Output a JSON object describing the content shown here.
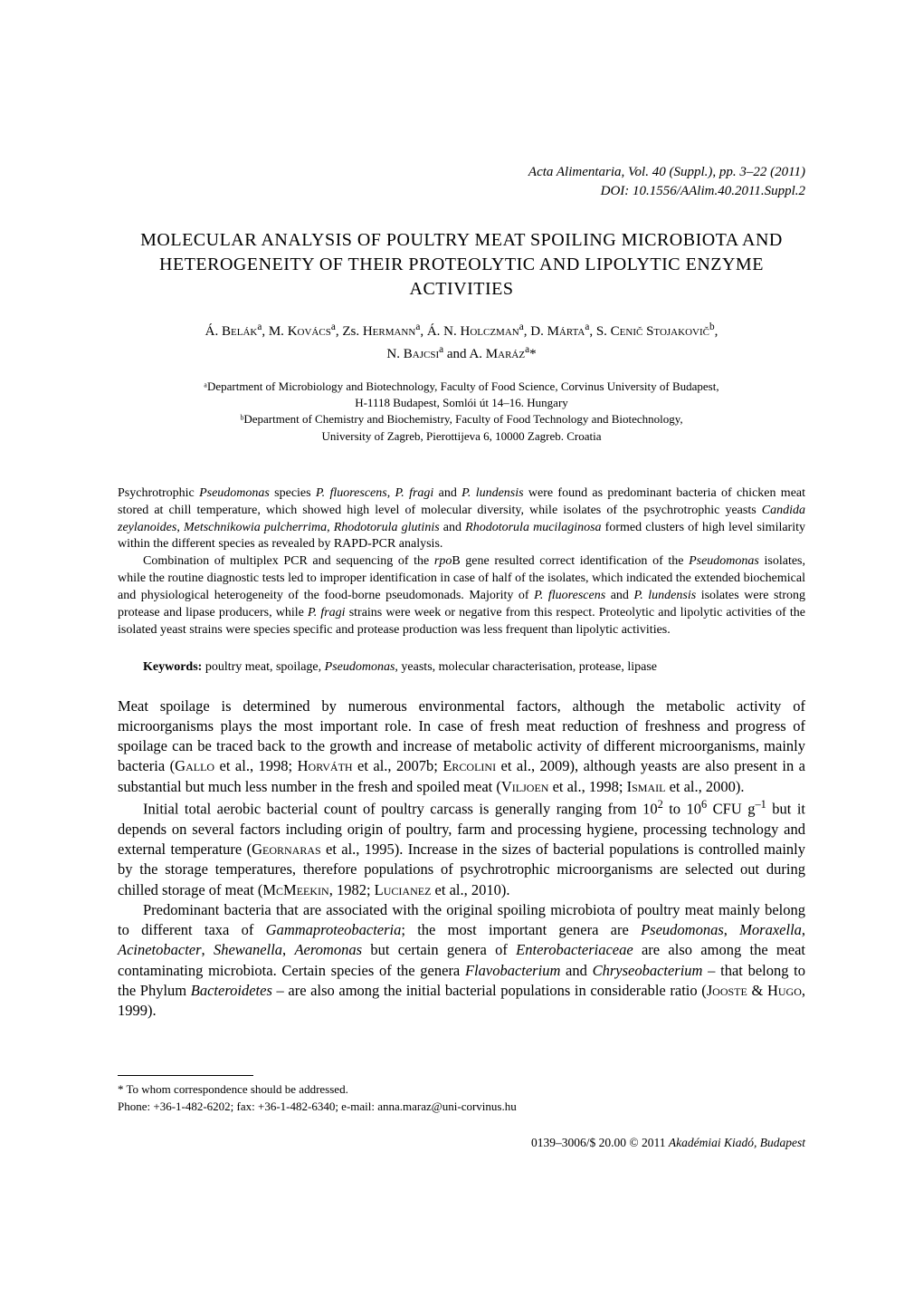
{
  "journal": {
    "citation": "Acta Alimentaria, Vol. 40 (Suppl.), pp. 3–22 (2011)",
    "doi": "DOI: 10.1556/AAlim.40.2011.Suppl.2"
  },
  "title": "MOLECULAR ANALYSIS OF POULTRY MEAT SPOILING MICROBIOTA AND HETEROGENEITY OF THEIR PROTEOLYTIC AND LIPOLYTIC ENZYME ACTIVITIES",
  "authors_line1_html": "Á. <span class='sc'>Belák</span><sup>a</sup>, M. <span class='sc'>Kovács</span><sup>a</sup>, Zs. <span class='sc'>Hermann</span><sup>a</sup>, Á. N. <span class='sc'>Holczman</span><sup>a</sup>, D. <span class='sc'>Márta</span><sup>a</sup>, S. <span class='sc'>Cenič Stojakovič</span><sup>b</sup>,",
  "authors_line2_html": "N. <span class='sc'>Bajcsi</span><sup>a</sup> and A. <span class='sc'>Maráz</span><sup>a</sup>*",
  "affiliations": {
    "a1": "ᵃDepartment of Microbiology and Biotechnology, Faculty of Food Science, Corvinus University of Budapest,",
    "a2": "H-1118 Budapest, Somlói út 14–16. Hungary",
    "b1": "ᵇDepartment of Chemistry and Biochemistry, Faculty of Food Technology and Biotechnology,",
    "b2": "University of Zagreb, Pierottijeva 6, 10000 Zagreb. Croatia"
  },
  "abstract": {
    "p1_html": "Psychrotrophic <i>Pseudomonas</i> species <i>P. fluorescens</i>, <i>P. fragi</i> and <i>P. lundensis</i> were found as predominant bacteria of chicken meat stored at chill temperature, which showed high level of molecular diversity, while isolates of the psychrotrophic yeasts <i>Candida zeylanoides</i>, <i>Metschnikowia pulcherrima</i>, <i>Rhodotorula glutinis</i> and <i>Rhodotorula mucilaginosa</i> formed clusters of high level similarity within the different species as revealed by RAPD-PCR analysis.",
    "p2_html": "Combination of multiplex PCR and sequencing of the <i>rpo</i>B gene resulted correct identification of the <i>Pseudomonas</i> isolates, while the routine diagnostic tests led to improper identification in case of half of the isolates, which indicated the extended biochemical and physiological heterogeneity of the food-borne pseudomonads. Majority of <i>P. fluorescens</i> and <i>P. lundensis</i> isolates were strong protease and lipase producers, while <i>P. fragi</i> strains were week or negative from this respect. Proteolytic and lipolytic activities of the isolated yeast strains were species specific and protease production was less frequent than lipolytic activities."
  },
  "keywords_html": "<b>Keywords:</b> poultry meat, spoilage, <i>Pseudomonas</i>, yeasts, molecular characterisation, protease, lipase",
  "body": {
    "p1_html": "Meat spoilage is determined by numerous environmental factors, although the metabolic activity of microorganisms plays the most important role. In case of fresh meat reduction of freshness and progress of spoilage can be traced back to the growth and increase of metabolic activity of different microorganisms, mainly bacteria (<span class='sc'>Gallo</span> et al., 1998; <span class='sc'>Horváth</span> et al., 2007b; <span class='sc'>Ercolini</span> et al., 2009), although yeasts are also present in a substantial but much less number in the fresh and spoiled meat (<span class='sc'>Viljoen</span> et al., 1998; <span class='sc'>Ismail</span> et al., 2000).",
    "p2_html": "Initial total aerobic bacterial count of poultry carcass is generally ranging from 10<sup>2</sup> to 10<sup>6</sup> CFU g<sup>–1</sup> but it depends on several factors including origin of poultry, farm and processing hygiene, processing technology and external temperature (<span class='sc'>Geornaras</span> et al., 1995). Increase in the sizes of bacterial populations is controlled mainly by the storage temperatures, therefore populations of psychrotrophic microorganisms are selected out during chilled storage of meat (<span class='sc'>McMeekin</span>, 1982; <span class='sc'>Lucianez</span> et al., 2010).",
    "p3_html": "Predominant bacteria that are associated with the original spoiling microbiota of poultry meat mainly belong to different taxa of <i>Gammaproteobacteria</i>; the most important genera are <i>Pseudomonas</i>, <i>Moraxella</i>, <i>Acinetobacter</i>, <i>Shewanella</i>, <i>Aeromonas</i> but certain genera of <i>Enterobacteriaceae</i> are also among the meat contaminating microbiota. Certain species of the genera <i>Flavobacterium</i> and <i>Chryseobacterium</i> – that belong to the Phylum <i>Bacteroidetes</i> – are also among the initial bacterial populations in considerable ratio (<span class='sc'>Jooste</span> & <span class='sc'>Hugo</span>, 1999)."
  },
  "footnote": {
    "line1": "* To whom correspondence should be addressed.",
    "line2": "Phone: +36-1-482-6202; fax: +36-1-482-6340; e-mail: anna.maraz@uni-corvinus.hu"
  },
  "copyright_html": "0139–3006/$ 20.00 © 2011 <i>Akadémiai Kiadó, Budapest</i>"
}
